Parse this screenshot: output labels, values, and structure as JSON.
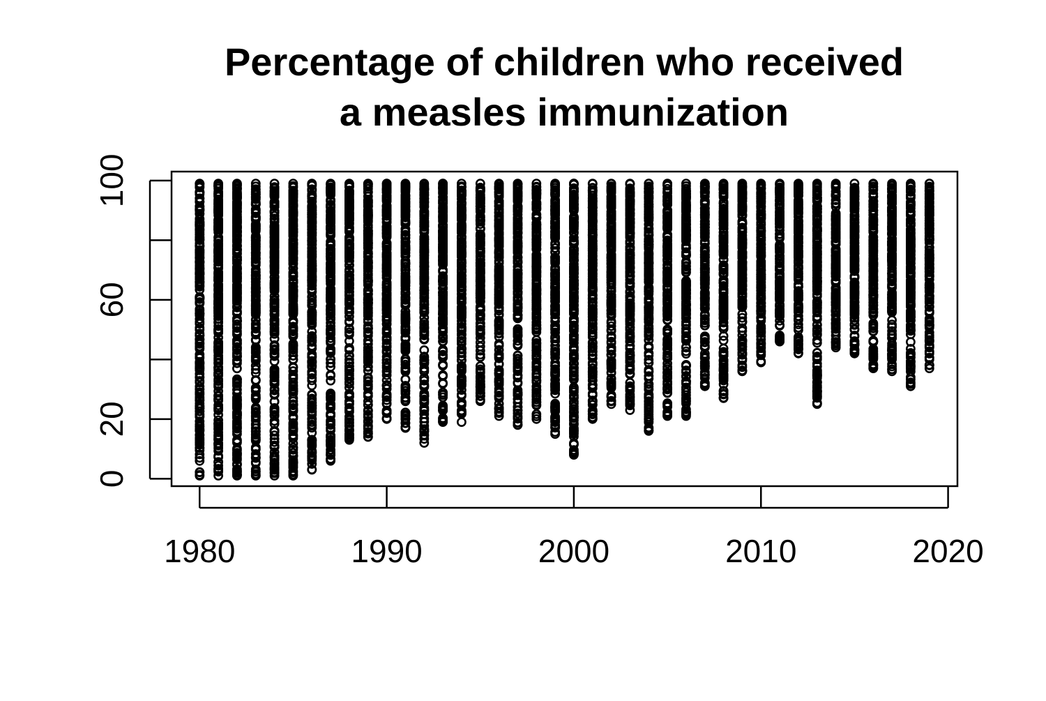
{
  "chart_data": {
    "type": "scatter",
    "title_lines": [
      "Percentage of children who received",
      "a measles immunization"
    ],
    "xlabel": "",
    "ylabel": "",
    "xlim": [
      1978.5,
      2020.5
    ],
    "ylim": [
      -2.5,
      103
    ],
    "x_ticks": [
      1980,
      1990,
      2000,
      2010,
      2020
    ],
    "y_ticks": [
      0,
      20,
      40,
      60,
      80,
      100
    ],
    "y_tick_labels": [
      "0",
      "20",
      "",
      "60",
      "",
      "100"
    ],
    "grid": false,
    "legend": "none",
    "point_shape": "open-circle",
    "point_color": "#000000",
    "min_values_by_year": [
      {
        "year": 1980,
        "min": 1
      },
      {
        "year": 1981,
        "min": 1
      },
      {
        "year": 1982,
        "min": 1
      },
      {
        "year": 1983,
        "min": 1
      },
      {
        "year": 1984,
        "min": 1
      },
      {
        "year": 1985,
        "min": 1
      },
      {
        "year": 1986,
        "min": 3
      },
      {
        "year": 1987,
        "min": 6
      },
      {
        "year": 1988,
        "min": 13
      },
      {
        "year": 1989,
        "min": 14
      },
      {
        "year": 1990,
        "min": 20
      },
      {
        "year": 1991,
        "min": 17
      },
      {
        "year": 1992,
        "min": 12
      },
      {
        "year": 1993,
        "min": 19
      },
      {
        "year": 1994,
        "min": 19
      },
      {
        "year": 1995,
        "min": 26
      },
      {
        "year": 1996,
        "min": 21
      },
      {
        "year": 1997,
        "min": 18
      },
      {
        "year": 1998,
        "min": 20
      },
      {
        "year": 1999,
        "min": 15
      },
      {
        "year": 2000,
        "min": 8
      },
      {
        "year": 2001,
        "min": 20
      },
      {
        "year": 2002,
        "min": 25
      },
      {
        "year": 2003,
        "min": 23
      },
      {
        "year": 2004,
        "min": 16
      },
      {
        "year": 2005,
        "min": 21
      },
      {
        "year": 2006,
        "min": 21
      },
      {
        "year": 2007,
        "min": 31
      },
      {
        "year": 2008,
        "min": 27
      },
      {
        "year": 2009,
        "min": 36
      },
      {
        "year": 2010,
        "min": 39
      },
      {
        "year": 2011,
        "min": 46
      },
      {
        "year": 2012,
        "min": 42
      },
      {
        "year": 2013,
        "min": 25
      },
      {
        "year": 2014,
        "min": 44
      },
      {
        "year": 2015,
        "min": 42
      },
      {
        "year": 2016,
        "min": 37
      },
      {
        "year": 2017,
        "min": 36
      },
      {
        "year": 2018,
        "min": 31
      },
      {
        "year": 2019,
        "min": 37
      }
    ],
    "max_value_all_years": 99
  }
}
